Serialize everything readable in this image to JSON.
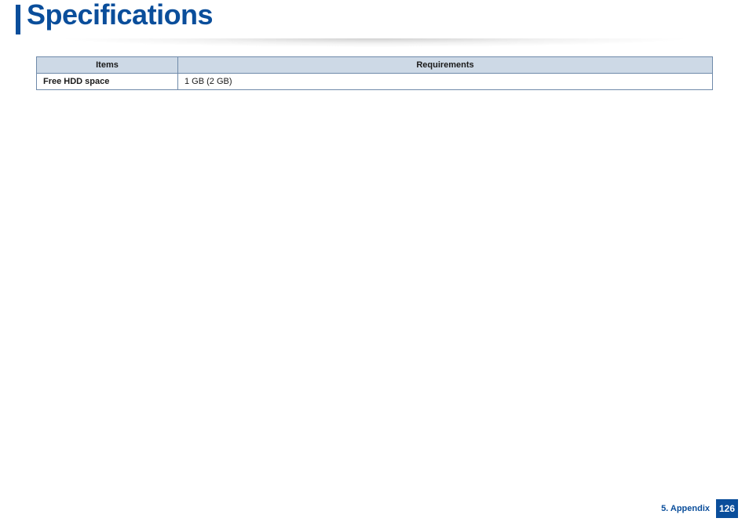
{
  "colors": {
    "brand": "#0a4e9b",
    "table_header_bg": "#cdd9e6",
    "table_border": "#6f8aaa",
    "page_bg": "#ffffff",
    "text": "#1a1a1a"
  },
  "header": {
    "title": "Specifications"
  },
  "table": {
    "columns": [
      "Items",
      "Requirements"
    ],
    "rows": [
      {
        "item": "Free HDD space",
        "requirement": "1 GB (2 GB)"
      }
    ]
  },
  "footer": {
    "chapter": "5. Appendix",
    "page_number": "126"
  }
}
